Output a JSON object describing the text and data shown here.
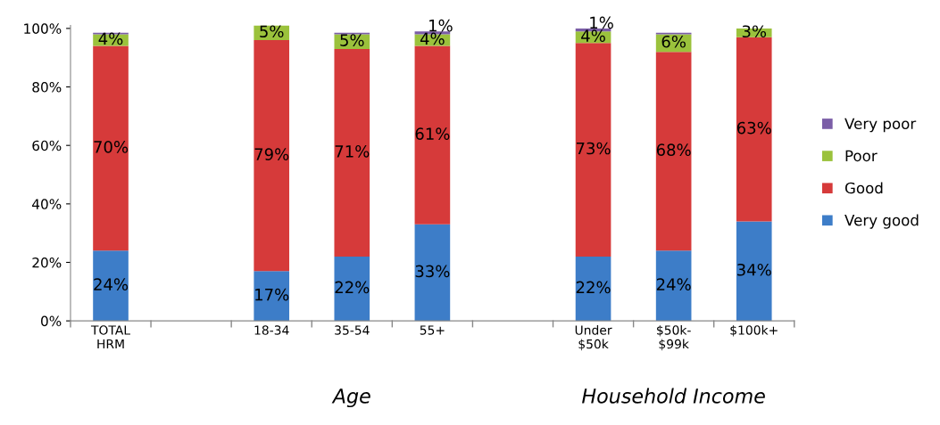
{
  "chart_data": {
    "type": "bar",
    "stacked": true,
    "categories": [
      "TOTAL\nHRM",
      null,
      "18-34",
      "35-54",
      "55+",
      null,
      "Under\n$50k",
      "$50k-\n$99k",
      "$100k+"
    ],
    "series": [
      {
        "name": "Very good",
        "color": "#3d7dc8",
        "values": [
          24,
          null,
          17,
          22,
          33,
          null,
          22,
          24,
          34
        ],
        "value_labels": [
          "24%",
          null,
          "17%",
          "22%",
          "33%",
          null,
          "22%",
          "24%",
          "34%"
        ]
      },
      {
        "name": "Good",
        "color": "#d63a3a",
        "values": [
          70,
          null,
          79,
          71,
          61,
          null,
          73,
          68,
          63
        ],
        "value_labels": [
          "70%",
          null,
          "79%",
          "71%",
          "61%",
          null,
          "73%",
          "68%",
          "63%"
        ]
      },
      {
        "name": "Poor",
        "color": "#9bc23c",
        "values": [
          4,
          null,
          5,
          5,
          4,
          null,
          4,
          6,
          3
        ],
        "value_labels": [
          "4%",
          null,
          "5%",
          "5%",
          "4%",
          null,
          "4%",
          "6%",
          "3%"
        ]
      },
      {
        "name": "Very poor",
        "color": "#7b5ea7",
        "values": [
          0.5,
          null,
          null,
          0.5,
          1,
          null,
          1,
          0.5,
          null
        ],
        "value_labels": [
          null,
          null,
          null,
          null,
          "1%",
          null,
          "1%",
          null,
          null
        ]
      }
    ],
    "ylim": [
      0,
      101
    ],
    "yticks": [
      {
        "value": 0,
        "label": "0%"
      },
      {
        "value": 20,
        "label": "20%"
      },
      {
        "value": 40,
        "label": "40%"
      },
      {
        "value": 60,
        "label": "60%"
      },
      {
        "value": 80,
        "label": "80%"
      },
      {
        "value": 100,
        "label": "100%"
      }
    ],
    "annotations": [
      "Age",
      "Household Income"
    ],
    "legend": "right",
    "grid": false
  }
}
